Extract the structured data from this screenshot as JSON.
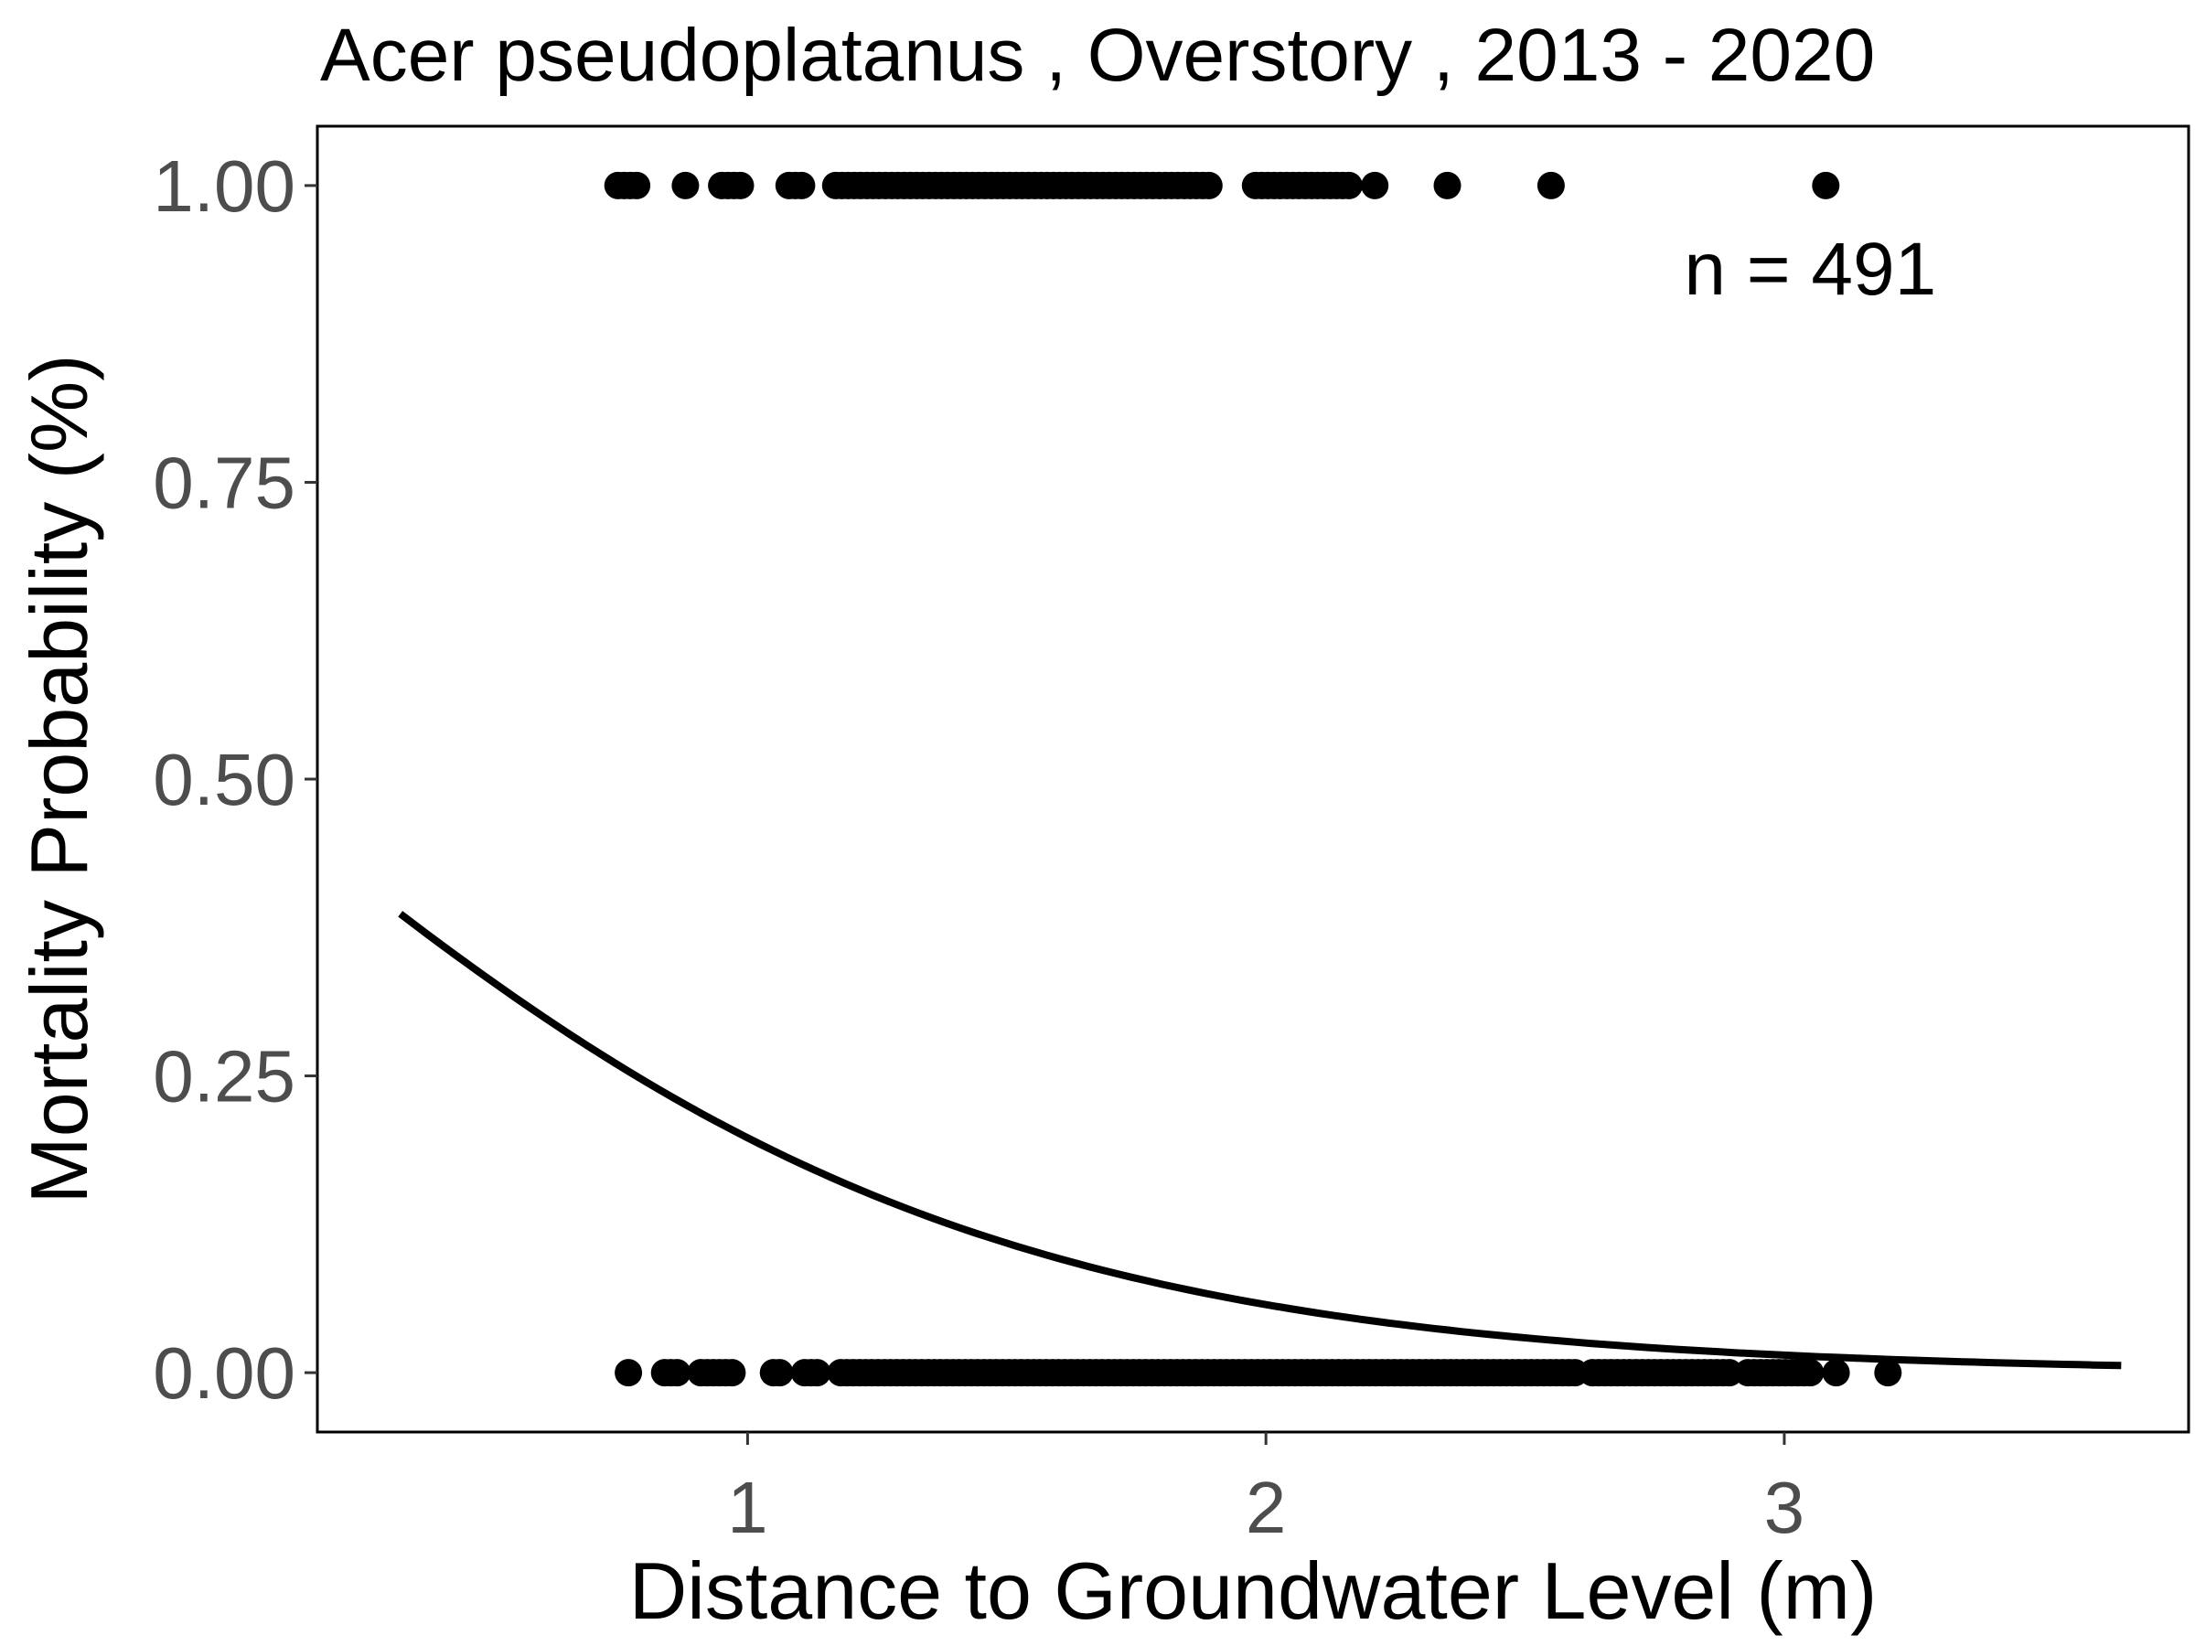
{
  "chart_data": {
    "type": "scatter",
    "title": "Acer pseudoplatanus , Overstory , 2013 - 2020",
    "xlabel": "Distance to Groundwater Level (m)",
    "ylabel": "Mortality Probability (%)",
    "xlim": [
      0.17,
      3.78
    ],
    "ylim": [
      -0.05,
      1.05
    ],
    "x_ticks": [
      1,
      2,
      3
    ],
    "x_tick_labels": [
      "1",
      "2",
      "3"
    ],
    "y_ticks": [
      0,
      0.25,
      0.5,
      0.75,
      1
    ],
    "y_tick_labels": [
      "0.00",
      "0.25",
      "0.50",
      "0.75",
      "1.00"
    ],
    "grid": false,
    "annotation": {
      "text": "n =  491",
      "x": 3.05,
      "y": 0.93
    },
    "series": [
      {
        "type": "scatter",
        "y": 1,
        "x_ranges": [
          [
            0.75,
            0.79
          ],
          [
            0.88,
            0.88
          ],
          [
            0.95,
            0.99
          ],
          [
            1.08,
            1.11
          ],
          [
            1.17,
            1.9
          ],
          [
            1.98,
            2.16
          ],
          [
            2.21,
            2.21
          ],
          [
            2.35,
            2.35
          ],
          [
            2.55,
            2.55
          ],
          [
            3.08,
            3.08
          ]
        ]
      },
      {
        "type": "scatter",
        "y": 0,
        "x_ranges": [
          [
            0.77,
            0.77
          ],
          [
            0.84,
            0.87
          ],
          [
            0.91,
            0.98
          ],
          [
            1.05,
            1.07
          ],
          [
            1.11,
            1.14
          ],
          [
            1.18,
            2.6
          ],
          [
            2.63,
            2.9
          ],
          [
            2.93,
            3.05
          ],
          [
            3.1,
            3.1
          ],
          [
            3.2,
            3.2
          ]
        ]
      },
      {
        "type": "line",
        "logistic": {
          "intercept": 0.0,
          "slope": -1.4
        },
        "x_range": [
          0.33,
          3.65
        ]
      }
    ]
  }
}
